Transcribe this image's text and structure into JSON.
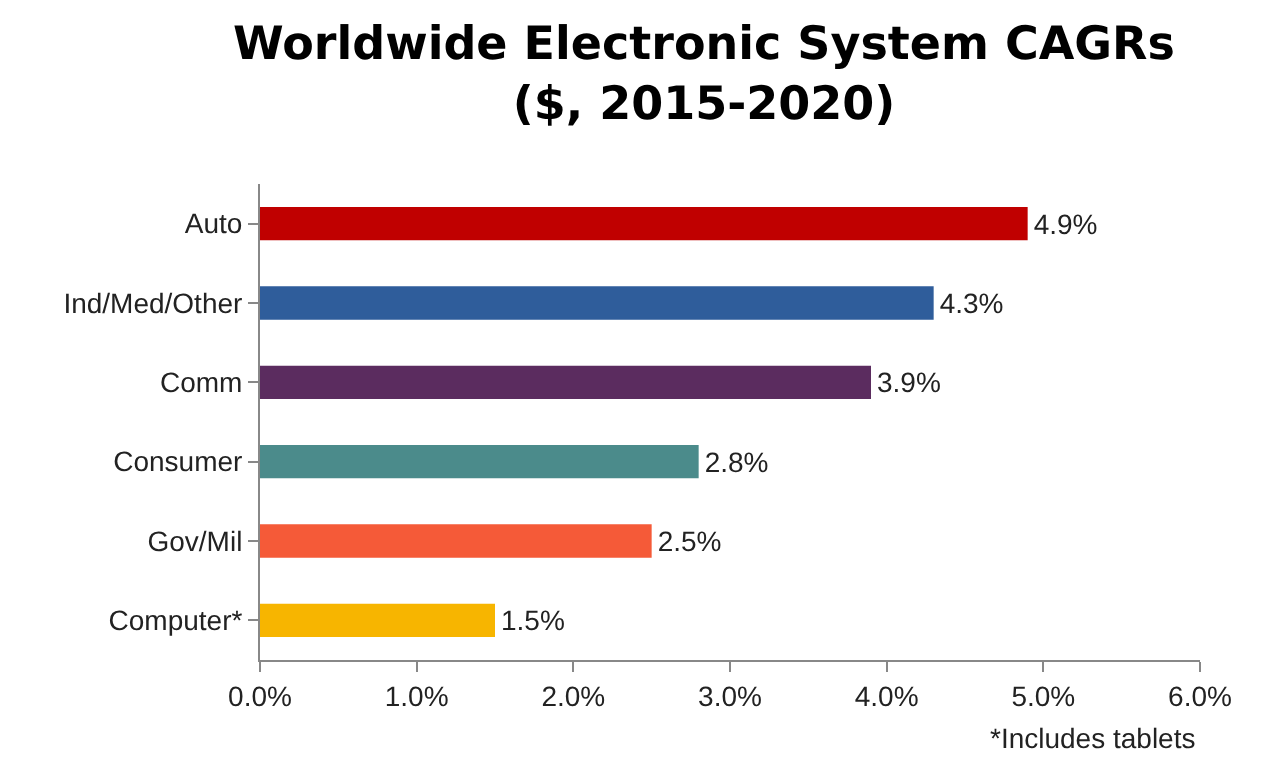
{
  "chart_data": {
    "type": "bar",
    "orientation": "horizontal",
    "title": "Worldwide Electronic System CAGRs\n($, 2015-2020)",
    "categories": [
      "Auto",
      "Ind/Med/Other",
      "Comm",
      "Consumer",
      "Gov/Mil",
      "Computer*"
    ],
    "values": [
      4.9,
      4.3,
      3.9,
      2.8,
      2.5,
      1.5
    ],
    "colors": [
      "#c00000",
      "#2f5d9b",
      "#5b2c5f",
      "#4b8b8b",
      "#f55a38",
      "#f7b500"
    ],
    "value_labels": [
      "4.9%",
      "4.3%",
      "3.9%",
      "2.8%",
      "2.5%",
      "1.5%"
    ],
    "xlim": [
      0,
      6
    ],
    "xticks": [
      {
        "value": 0,
        "label": "0.0%"
      },
      {
        "value": 1,
        "label": "1.0%"
      },
      {
        "value": 2,
        "label": "2.0%"
      },
      {
        "value": 3,
        "label": "3.0%"
      },
      {
        "value": 4,
        "label": "4.0%"
      },
      {
        "value": 5,
        "label": "5.0%"
      },
      {
        "value": 6,
        "label": "6.0%"
      }
    ],
    "annotations": [
      "*Includes tablets"
    ]
  }
}
